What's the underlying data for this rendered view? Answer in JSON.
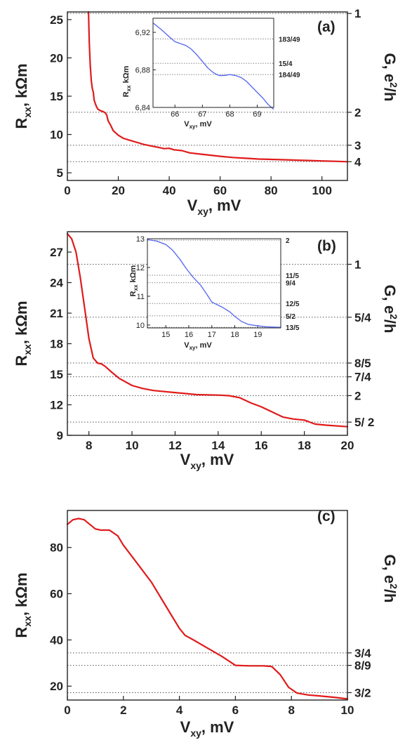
{
  "chart_data": [
    {
      "panel": "(a)",
      "type": "line",
      "xlabel_main": "V",
      "xlabel_sub": "xy",
      "xlabel_tail": ", mV",
      "ylabel_main": "R",
      "ylabel_sub": "xx",
      "ylabel_tail": ", kΩm",
      "y2label_main": "G, e",
      "y2label_sup": "2",
      "y2label_tail": "/h",
      "xlim": [
        0,
        110
      ],
      "ylim": [
        4,
        26
      ],
      "xticks": [
        0,
        20,
        40,
        60,
        80,
        100
      ],
      "yticks": [
        5,
        10,
        15,
        20,
        25
      ],
      "right_labels": [
        {
          "label": "1",
          "value": 25.8
        },
        {
          "label": "2",
          "value": 12.9
        },
        {
          "label": "3",
          "value": 8.6
        },
        {
          "label": "4",
          "value": 6.45
        }
      ],
      "series": [
        {
          "color": "#e01b1b",
          "x": [
            8.3,
            8.6,
            9.0,
            9.4,
            9.8,
            10.2,
            10.5,
            11.0,
            11.5,
            12.0,
            13.0,
            14.0,
            15.0,
            15.5,
            16.0,
            17.0,
            18.0,
            20.0,
            22.0,
            25.0,
            28.0,
            30.0,
            33.0,
            36.0,
            38.0,
            40.0,
            42.0,
            45.0,
            48.0,
            52.0,
            56.0,
            60.0,
            65.0,
            70.0,
            75.0,
            80.0,
            85.0,
            90.0,
            95.0,
            100.0,
            105.0,
            110.0
          ],
          "y": [
            26,
            22,
            19,
            17,
            16,
            15.5,
            14.5,
            14.0,
            13.6,
            13.3,
            13.1,
            13.0,
            12.8,
            12.5,
            11.8,
            11.2,
            10.5,
            9.9,
            9.5,
            9.2,
            8.9,
            8.7,
            8.5,
            8.3,
            8.15,
            8.2,
            8.0,
            7.9,
            7.6,
            7.45,
            7.3,
            7.15,
            7.0,
            6.9,
            6.8,
            6.75,
            6.7,
            6.65,
            6.6,
            6.55,
            6.5,
            6.45
          ]
        }
      ],
      "inset": {
        "xlabel_main": "V",
        "xlabel_sub": "xy",
        "xlabel_tail": ", mV",
        "ylabel_main": "R",
        "ylabel_sub": "xx",
        "ylabel_tail": " kΩm",
        "xlim": [
          65.2,
          69.6
        ],
        "ylim": [
          6.84,
          6.935
        ],
        "xticks": [
          66,
          67,
          68,
          69
        ],
        "yticks": [
          6.84,
          6.88,
          6.92
        ],
        "ytick_labels": [
          "6,84",
          "6,88",
          "6,92"
        ],
        "right_labels": [
          {
            "label": "183/49",
            "value": 6.913
          },
          {
            "label": "15/4",
            "value": 6.887
          },
          {
            "label": "184/49",
            "value": 6.875
          }
        ],
        "series": [
          {
            "color": "#5c6cf0",
            "x": [
              65.2,
              65.5,
              65.8,
              66.0,
              66.2,
              66.4,
              66.6,
              66.8,
              67.0,
              67.2,
              67.4,
              67.6,
              67.8,
              68.0,
              68.2,
              68.4,
              68.6,
              68.8,
              69.0,
              69.2,
              69.4,
              69.6
            ],
            "y": [
              6.93,
              6.923,
              6.915,
              6.91,
              6.908,
              6.906,
              6.902,
              6.896,
              6.889,
              6.882,
              6.877,
              6.874,
              6.874,
              6.875,
              6.874,
              6.872,
              6.868,
              6.862,
              6.856,
              6.85,
              6.843,
              6.838
            ]
          }
        ]
      }
    },
    {
      "panel": "(b)",
      "type": "line",
      "xlabel_main": "V",
      "xlabel_sub": "xy",
      "xlabel_tail": ", mV",
      "ylabel_main": "R",
      "ylabel_sub": "xx",
      "ylabel_tail": ", kΩm",
      "y2label_main": "G, e",
      "y2label_sup": "2",
      "y2label_tail": "/h",
      "xlim": [
        7,
        20
      ],
      "ylim": [
        9,
        29
      ],
      "xticks": [
        8,
        10,
        12,
        14,
        16,
        18,
        20
      ],
      "yticks": [
        9,
        12,
        15,
        18,
        21,
        24,
        27
      ],
      "right_labels": [
        {
          "label": "1",
          "value": 25.8
        },
        {
          "label": "5/4",
          "value": 20.6
        },
        {
          "label": "8/5",
          "value": 16.1
        },
        {
          "label": "7/4",
          "value": 14.75
        },
        {
          "label": "2",
          "value": 12.9
        },
        {
          "label": "5/ 2",
          "value": 10.3
        }
      ],
      "series": [
        {
          "color": "#e01b1b",
          "x": [
            7.0,
            7.2,
            7.4,
            7.6,
            7.8,
            8.0,
            8.2,
            8.4,
            8.6,
            8.8,
            9.0,
            9.4,
            10.0,
            10.5,
            11.0,
            12.0,
            13.0,
            14.0,
            14.5,
            15.0,
            15.5,
            16.0,
            16.5,
            17.0,
            17.5,
            18.0,
            18.5,
            19.0,
            20.0
          ],
          "y": [
            28.8,
            28.3,
            27.0,
            24.5,
            21.5,
            18.5,
            16.6,
            16.1,
            16.0,
            15.7,
            15.3,
            14.6,
            13.9,
            13.6,
            13.4,
            13.2,
            13.0,
            12.95,
            12.9,
            12.7,
            12.2,
            11.8,
            11.3,
            10.8,
            10.6,
            10.5,
            10.1,
            10.0,
            9.85
          ]
        }
      ],
      "inset": {
        "xlabel_main": "V",
        "xlabel_sub": "xy",
        "xlabel_tail": ", mV",
        "ylabel_main": "R",
        "ylabel_sub": "xx",
        "ylabel_tail": " kΩm",
        "xlim": [
          14.2,
          20
        ],
        "ylim": [
          9.9,
          13
        ],
        "xticks": [
          15,
          16,
          17,
          18,
          19
        ],
        "yticks": [
          10,
          11,
          12,
          13
        ],
        "ytick_labels": [
          "10",
          "11",
          "12",
          "13"
        ],
        "right_labels": [
          {
            "label": "2",
            "value": 12.95
          },
          {
            "label": "11/5",
            "value": 11.73
          },
          {
            "label": "9/4",
            "value": 11.47
          },
          {
            "label": "12/5",
            "value": 10.75
          },
          {
            "label": "5/2",
            "value": 10.32
          },
          {
            "label": "13/5",
            "value": 9.92
          }
        ],
        "series": [
          {
            "color": "#5c6cf0",
            "x": [
              14.2,
              14.6,
              15.0,
              15.3,
              15.6,
              15.9,
              16.2,
              16.5,
              16.8,
              17.0,
              17.2,
              17.5,
              17.8,
              18.0,
              18.3,
              18.6,
              19.0,
              19.4,
              20.0
            ],
            "y": [
              12.97,
              12.92,
              12.8,
              12.6,
              12.3,
              11.95,
              11.65,
              11.4,
              11.05,
              10.8,
              10.72,
              10.6,
              10.45,
              10.3,
              10.12,
              10.02,
              9.97,
              9.94,
              9.92
            ]
          }
        ]
      }
    },
    {
      "panel": "(c)",
      "type": "line",
      "xlabel_main": "V",
      "xlabel_sub": "xy",
      "xlabel_tail": ", mV",
      "ylabel_main": "R",
      "ylabel_sub": "xx",
      "ylabel_tail": ", kΩm",
      "y2label_main": "G, e",
      "y2label_sup": "2",
      "y2label_tail": "/h",
      "xlim": [
        0,
        10
      ],
      "ylim": [
        14,
        96
      ],
      "xticks": [
        0,
        2,
        4,
        6,
        8,
        10
      ],
      "yticks": [
        20,
        40,
        60,
        80
      ],
      "right_labels": [
        {
          "label": "3/4",
          "value": 34.4
        },
        {
          "label": "8/9",
          "value": 29.0
        },
        {
          "label": "3/2",
          "value": 17.2
        }
      ],
      "series": [
        {
          "color": "#e01b1b",
          "x": [
            0.0,
            0.2,
            0.4,
            0.6,
            0.8,
            1.0,
            1.2,
            1.5,
            1.8,
            2.0,
            2.5,
            3.0,
            3.5,
            4.0,
            4.2,
            4.5,
            5.0,
            5.5,
            6.0,
            6.5,
            7.0,
            7.3,
            7.6,
            7.9,
            8.2,
            8.6,
            9.0,
            9.5,
            10.0
          ],
          "y": [
            90,
            92,
            92.5,
            92,
            90,
            88,
            87.5,
            87.5,
            85,
            81,
            73,
            65,
            55,
            45,
            42,
            40,
            36.5,
            33,
            29,
            28.8,
            28.8,
            28.5,
            25,
            19.5,
            17.0,
            16.2,
            15.8,
            15.2,
            14.5
          ]
        }
      ]
    }
  ],
  "panels": [
    {
      "label": "(a)",
      "xtick_labels": [
        "0",
        "20",
        "40",
        "60",
        "80",
        "100"
      ],
      "ytick_labels": [
        "5",
        "10",
        "15",
        "20",
        "25"
      ],
      "inset_xtick_labels": [
        "66",
        "67",
        "68",
        "69"
      ]
    },
    {
      "label": "(b)",
      "xtick_labels": [
        "8",
        "10",
        "12",
        "14",
        "16",
        "18",
        "20"
      ],
      "ytick_labels": [
        "9",
        "12",
        "15",
        "18",
        "21",
        "24",
        "27"
      ],
      "inset_xtick_labels": [
        "15",
        "16",
        "17",
        "18",
        "19"
      ]
    },
    {
      "label": "(c)",
      "xtick_labels": [
        "0",
        "2",
        "4",
        "6",
        "8",
        "10"
      ],
      "ytick_labels": [
        "20",
        "40",
        "60",
        "80"
      ]
    }
  ]
}
